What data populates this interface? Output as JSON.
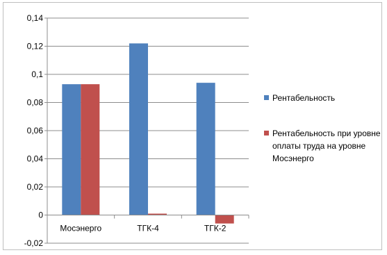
{
  "chart_data": {
    "type": "bar",
    "categories": [
      "Мосэнерго",
      "ТГК-4",
      "ТГК-2"
    ],
    "series": [
      {
        "name": "Рентабельность",
        "values": [
          0.093,
          0.122,
          0.094
        ],
        "color": "#4F81BD"
      },
      {
        "name": "Рентабельность  при уровне оплаты труда на уровне Мосэнерго",
        "values": [
          0.093,
          0.001,
          -0.006
        ],
        "color": "#C0504D"
      }
    ],
    "y_ticks": [
      "0,14",
      "0,12",
      "0,1",
      "0,08",
      "0,06",
      "0,04",
      "0,02",
      "0",
      "-0,02"
    ],
    "ylim": [
      -0.02,
      0.14
    ],
    "grid": true,
    "legend_position": "right"
  }
}
